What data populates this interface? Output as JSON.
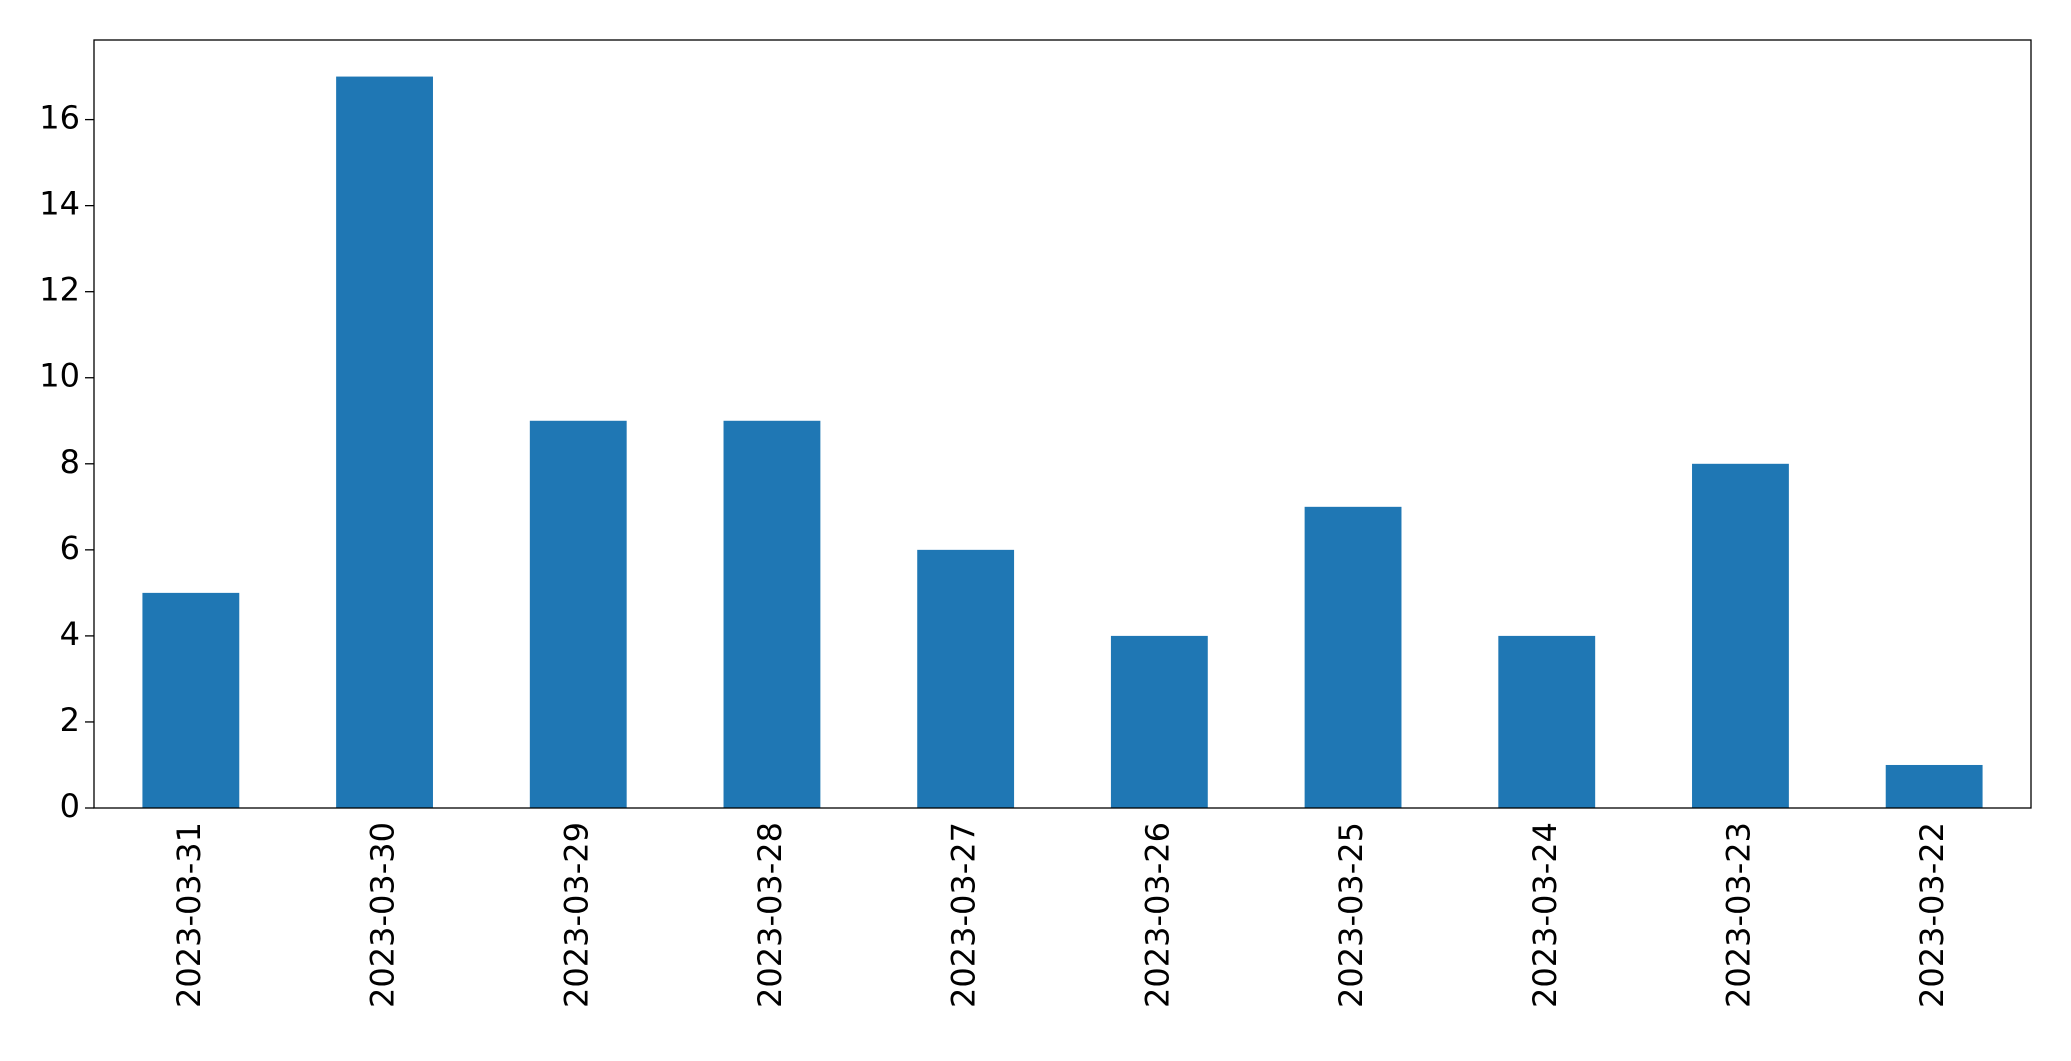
{
  "chart_data": {
    "type": "bar",
    "categories": [
      "2023-03-31",
      "2023-03-30",
      "2023-03-29",
      "2023-03-28",
      "2023-03-27",
      "2023-03-26",
      "2023-03-25",
      "2023-03-24",
      "2023-03-23",
      "2023-03-22"
    ],
    "values": [
      5,
      17,
      9,
      9,
      6,
      4,
      7,
      4,
      8,
      1
    ],
    "color": "#1f77b4",
    "ylim": [
      0,
      17.85
    ],
    "yticks": [
      0,
      2,
      4,
      6,
      8,
      10,
      12,
      14,
      16
    ],
    "grid": false
  }
}
